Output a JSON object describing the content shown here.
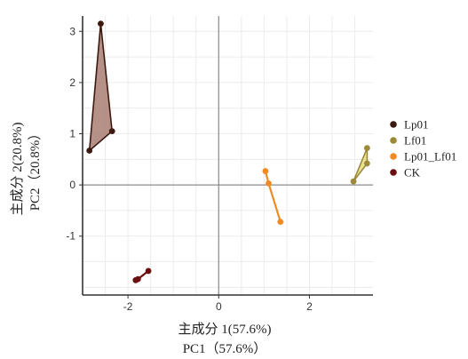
{
  "chart_data": {
    "type": "scatter",
    "x_label_cn": "主成分 1(57.6%)",
    "x_label_en": "PC1（57.6%）",
    "y_label_cn": "主成分 2(20.8%)",
    "y_label_en": "PC2（20.8%）",
    "xlim": [
      -3,
      3.4
    ],
    "ylim": [
      -2.15,
      3.3
    ],
    "x_ticks": [
      -2,
      0,
      2
    ],
    "x_tick_labels": [
      "-2",
      "0",
      "2"
    ],
    "y_ticks": [
      3,
      2,
      1,
      0,
      -1
    ],
    "y_tick_labels": [
      "3",
      "2",
      "1",
      "0",
      "-1"
    ],
    "grid": true,
    "legend_position": "right",
    "series": [
      {
        "name": "Lp01",
        "color": "#3d1a10",
        "fill": "#a97e72",
        "points": [
          [
            -2.6,
            3.15
          ],
          [
            -2.35,
            1.05
          ],
          [
            -2.85,
            0.67
          ]
        ]
      },
      {
        "name": "Lf01",
        "color": "#9c8a3a",
        "fill": "#e9dd82",
        "points": [
          [
            3.27,
            0.72
          ],
          [
            3.27,
            0.42
          ],
          [
            2.97,
            0.07
          ]
        ]
      },
      {
        "name": "Lp01_Lf01",
        "color": "#f08a24",
        "fill": "none",
        "points": [
          [
            1.03,
            0.27
          ],
          [
            1.1,
            0.03
          ],
          [
            1.36,
            -0.72
          ]
        ]
      },
      {
        "name": "CK",
        "color": "#6b1010",
        "fill": "none",
        "points": [
          [
            -1.55,
            -1.68
          ],
          [
            -1.78,
            -1.84
          ],
          [
            -1.83,
            -1.86
          ]
        ]
      }
    ]
  }
}
